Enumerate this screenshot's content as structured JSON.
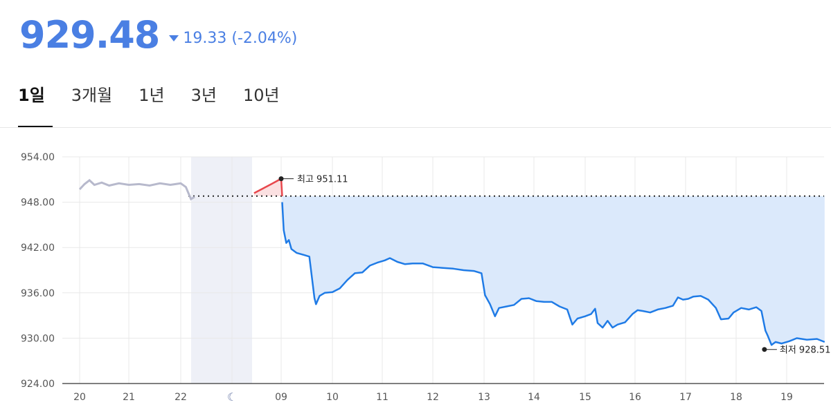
{
  "header": {
    "price": "929.48",
    "change": "19.33 (-2.04%)",
    "direction": "down",
    "color": "#4a7fe3"
  },
  "tabs": [
    {
      "label": "1일",
      "active": true
    },
    {
      "label": "3개월",
      "active": false
    },
    {
      "label": "1년",
      "active": false
    },
    {
      "label": "3년",
      "active": false
    },
    {
      "label": "10년",
      "active": false
    }
  ],
  "chart_data": {
    "type": "line",
    "yticks": [
      "954.00",
      "948.00",
      "942.00",
      "936.00",
      "930.00",
      "924.00"
    ],
    "ylim": [
      924,
      954
    ],
    "xticks": [
      "20",
      "21",
      "22",
      "moon-icon",
      "09",
      "10",
      "11",
      "12",
      "13",
      "14",
      "15",
      "16",
      "17",
      "18",
      "19"
    ],
    "previous_close": 948.81,
    "annotations": {
      "high": {
        "label": "최고 951.11",
        "value": 951.11
      },
      "low": {
        "label": "최저 928.51",
        "value": 928.51
      }
    },
    "colors": {
      "prev_day": "#b7b9cc",
      "line": "#1f7be6",
      "fill": "#dbe9fb",
      "up": "#e8474c",
      "up_fill": "#fbe0e1",
      "overnight": "#eef0f7"
    },
    "prev_day_series": [
      [
        0,
        949.7
      ],
      [
        0.1,
        950.4
      ],
      [
        0.2,
        950.9
      ],
      [
        0.3,
        950.3
      ],
      [
        0.45,
        950.6
      ],
      [
        0.6,
        950.2
      ],
      [
        0.8,
        950.5
      ],
      [
        1,
        950.3
      ],
      [
        1.2,
        950.4
      ],
      [
        1.4,
        950.2
      ],
      [
        1.6,
        950.5
      ],
      [
        1.8,
        950.3
      ],
      [
        2,
        950.5
      ],
      [
        2.1,
        950.0
      ],
      [
        2.15,
        949.2
      ],
      [
        2.2,
        948.4
      ],
      [
        2.27,
        948.7
      ]
    ],
    "preopen_series": [
      [
        3.45,
        949.2
      ],
      [
        3.8,
        950.4
      ],
      [
        4,
        951.11
      ],
      [
        4.02,
        948.8
      ]
    ],
    "series": [
      [
        4.02,
        948.0
      ],
      [
        4.05,
        944.3
      ],
      [
        4.1,
        942.6
      ],
      [
        4.15,
        943.0
      ],
      [
        4.2,
        941.8
      ],
      [
        4.3,
        941.3
      ],
      [
        4.45,
        941.0
      ],
      [
        4.55,
        940.8
      ],
      [
        4.65,
        935.3
      ],
      [
        4.68,
        934.5
      ],
      [
        4.75,
        935.6
      ],
      [
        4.85,
        936.0
      ],
      [
        5,
        936.1
      ],
      [
        5.15,
        936.6
      ],
      [
        5.3,
        937.7
      ],
      [
        5.45,
        938.6
      ],
      [
        5.6,
        938.7
      ],
      [
        5.75,
        939.6
      ],
      [
        5.9,
        940.0
      ],
      [
        6.05,
        940.3
      ],
      [
        6.15,
        940.6
      ],
      [
        6.3,
        940.1
      ],
      [
        6.45,
        939.8
      ],
      [
        6.6,
        939.9
      ],
      [
        6.8,
        939.9
      ],
      [
        7,
        939.4
      ],
      [
        7.2,
        939.3
      ],
      [
        7.4,
        939.2
      ],
      [
        7.6,
        939.0
      ],
      [
        7.8,
        938.9
      ],
      [
        7.95,
        938.6
      ],
      [
        8.02,
        935.7
      ],
      [
        8.12,
        934.5
      ],
      [
        8.22,
        932.9
      ],
      [
        8.3,
        934.0
      ],
      [
        8.45,
        934.2
      ],
      [
        8.6,
        934.4
      ],
      [
        8.75,
        935.2
      ],
      [
        8.9,
        935.3
      ],
      [
        9.05,
        934.9
      ],
      [
        9.2,
        934.8
      ],
      [
        9.35,
        934.8
      ],
      [
        9.5,
        934.2
      ],
      [
        9.65,
        933.8
      ],
      [
        9.75,
        931.8
      ],
      [
        9.85,
        932.6
      ],
      [
        10,
        932.9
      ],
      [
        10.12,
        933.2
      ],
      [
        10.2,
        933.9
      ],
      [
        10.25,
        932.0
      ],
      [
        10.35,
        931.4
      ],
      [
        10.45,
        932.3
      ],
      [
        10.55,
        931.4
      ],
      [
        10.65,
        931.8
      ],
      [
        10.8,
        932.1
      ],
      [
        10.95,
        933.2
      ],
      [
        11.05,
        933.7
      ],
      [
        11.15,
        933.6
      ],
      [
        11.3,
        933.4
      ],
      [
        11.45,
        933.8
      ],
      [
        11.6,
        934.0
      ],
      [
        11.75,
        934.3
      ],
      [
        11.85,
        935.4
      ],
      [
        11.95,
        935.1
      ],
      [
        12.05,
        935.2
      ],
      [
        12.15,
        935.5
      ],
      [
        12.3,
        935.6
      ],
      [
        12.45,
        935.1
      ],
      [
        12.6,
        934.0
      ],
      [
        12.7,
        932.5
      ],
      [
        12.85,
        932.6
      ],
      [
        12.95,
        933.4
      ],
      [
        13.1,
        934.0
      ],
      [
        13.25,
        933.8
      ],
      [
        13.4,
        934.1
      ],
      [
        13.5,
        933.6
      ],
      [
        13.58,
        931.0
      ],
      [
        13.62,
        930.4
      ],
      [
        13.7,
        929.1
      ],
      [
        13.78,
        929.5
      ],
      [
        13.9,
        929.3
      ],
      [
        14.05,
        929.6
      ],
      [
        14.2,
        930.0
      ],
      [
        14.4,
        929.8
      ],
      [
        14.6,
        929.9
      ],
      [
        14.75,
        929.5
      ]
    ],
    "high_point": [
      4,
      951.11
    ],
    "low_point": [
      13.56,
      928.51
    ]
  }
}
